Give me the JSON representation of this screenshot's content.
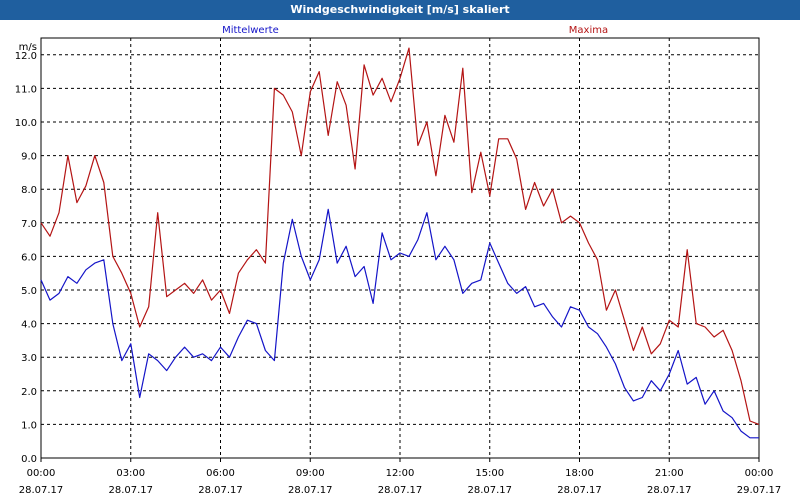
{
  "window": {
    "title": "Windgeschwindigkeit [m/s] skaliert"
  },
  "chart_data": {
    "type": "line",
    "title": "Windgeschwindigkeit [m/s] skaliert",
    "ylabel": "m/s",
    "ylim": [
      0,
      12.5
    ],
    "xlim": [
      0,
      24
    ],
    "grid": true,
    "y_ticks": [
      "0.0",
      "1.0",
      "2.0",
      "3.0",
      "4.0",
      "5.0",
      "6.0",
      "7.0",
      "8.0",
      "9.0",
      "10.0",
      "11.0",
      "12.0"
    ],
    "x_ticks": [
      {
        "time": "00:00",
        "date": "28.07.17"
      },
      {
        "time": "03:00",
        "date": "28.07.17"
      },
      {
        "time": "06:00",
        "date": "28.07.17"
      },
      {
        "time": "09:00",
        "date": "28.07.17"
      },
      {
        "time": "12:00",
        "date": "28.07.17"
      },
      {
        "time": "15:00",
        "date": "28.07.17"
      },
      {
        "time": "18:00",
        "date": "28.07.17"
      },
      {
        "time": "21:00",
        "date": "28.07.17"
      },
      {
        "time": "00:00",
        "date": "29.07.17"
      }
    ],
    "series": [
      {
        "name": "Mittelwerte",
        "color": "#1414c8",
        "x": [
          0.0,
          0.3,
          0.6,
          0.9,
          1.2,
          1.5,
          1.8,
          2.1,
          2.4,
          2.7,
          3.0,
          3.3,
          3.6,
          3.9,
          4.2,
          4.5,
          4.8,
          5.1,
          5.4,
          5.7,
          6.0,
          6.3,
          6.6,
          6.9,
          7.2,
          7.5,
          7.8,
          8.1,
          8.4,
          8.7,
          9.0,
          9.3,
          9.6,
          9.9,
          10.2,
          10.5,
          10.8,
          11.1,
          11.4,
          11.7,
          12.0,
          12.3,
          12.6,
          12.9,
          13.2,
          13.5,
          13.8,
          14.1,
          14.4,
          14.7,
          15.0,
          15.3,
          15.6,
          15.9,
          16.2,
          16.5,
          16.8,
          17.1,
          17.4,
          17.7,
          18.0,
          18.3,
          18.6,
          18.9,
          19.2,
          19.5,
          19.8,
          20.1,
          20.4,
          20.7,
          21.0,
          21.3,
          21.6,
          21.9,
          22.2,
          22.5,
          22.8,
          23.1,
          23.4,
          23.7,
          24.0
        ],
        "y": [
          5.3,
          4.7,
          4.9,
          5.4,
          5.2,
          5.6,
          5.8,
          5.9,
          4.0,
          2.9,
          3.4,
          1.8,
          3.1,
          2.9,
          2.6,
          3.0,
          3.3,
          3.0,
          3.1,
          2.9,
          3.3,
          3.0,
          3.6,
          4.1,
          4.0,
          3.2,
          2.9,
          5.8,
          7.1,
          6.0,
          5.3,
          5.9,
          7.4,
          5.8,
          6.3,
          5.4,
          5.7,
          4.6,
          6.7,
          5.9,
          6.1,
          6.0,
          6.5,
          7.3,
          5.9,
          6.3,
          5.9,
          4.9,
          5.2,
          5.3,
          6.4,
          5.8,
          5.2,
          4.9,
          5.1,
          4.5,
          4.6,
          4.2,
          3.9,
          4.5,
          4.4,
          3.9,
          3.7,
          3.3,
          2.8,
          2.1,
          1.7,
          1.8,
          2.3,
          2.0,
          2.5,
          3.2,
          2.2,
          2.4,
          1.6,
          2.0,
          1.4,
          1.2,
          0.8,
          0.6,
          0.6
        ]
      },
      {
        "name": "Maxima",
        "color": "#b41414",
        "x": [
          0.0,
          0.3,
          0.6,
          0.9,
          1.2,
          1.5,
          1.8,
          2.1,
          2.4,
          2.7,
          3.0,
          3.3,
          3.6,
          3.9,
          4.2,
          4.5,
          4.8,
          5.1,
          5.4,
          5.7,
          6.0,
          6.3,
          6.6,
          6.9,
          7.2,
          7.5,
          7.8,
          8.1,
          8.4,
          8.7,
          9.0,
          9.3,
          9.6,
          9.9,
          10.2,
          10.5,
          10.8,
          11.1,
          11.4,
          11.7,
          12.0,
          12.3,
          12.6,
          12.9,
          13.2,
          13.5,
          13.8,
          14.1,
          14.4,
          14.7,
          15.0,
          15.3,
          15.6,
          15.9,
          16.2,
          16.5,
          16.8,
          17.1,
          17.4,
          17.7,
          18.0,
          18.3,
          18.6,
          18.9,
          19.2,
          19.5,
          19.8,
          20.1,
          20.4,
          20.7,
          21.0,
          21.3,
          21.6,
          21.9,
          22.2,
          22.5,
          22.8,
          23.1,
          23.4,
          23.7,
          24.0
        ],
        "y": [
          7.0,
          6.6,
          7.3,
          9.0,
          7.6,
          8.1,
          9.0,
          8.2,
          6.0,
          5.5,
          4.9,
          3.9,
          4.5,
          7.3,
          4.8,
          5.0,
          5.2,
          4.9,
          5.3,
          4.7,
          5.0,
          4.3,
          5.5,
          5.9,
          6.2,
          5.8,
          11.0,
          10.8,
          10.3,
          9.0,
          10.9,
          11.5,
          9.6,
          11.2,
          10.5,
          8.6,
          11.7,
          10.8,
          11.3,
          10.6,
          11.3,
          12.2,
          9.3,
          10.0,
          8.4,
          10.2,
          9.4,
          11.6,
          7.9,
          9.1,
          7.8,
          9.5,
          9.5,
          8.9,
          7.4,
          8.2,
          7.5,
          8.0,
          7.0,
          7.2,
          7.0,
          6.4,
          5.9,
          4.4,
          5.0,
          4.1,
          3.2,
          3.9,
          3.1,
          3.4,
          4.1,
          3.9,
          6.2,
          4.0,
          3.9,
          3.6,
          3.8,
          3.2,
          2.3,
          1.1,
          1.0
        ]
      }
    ]
  }
}
